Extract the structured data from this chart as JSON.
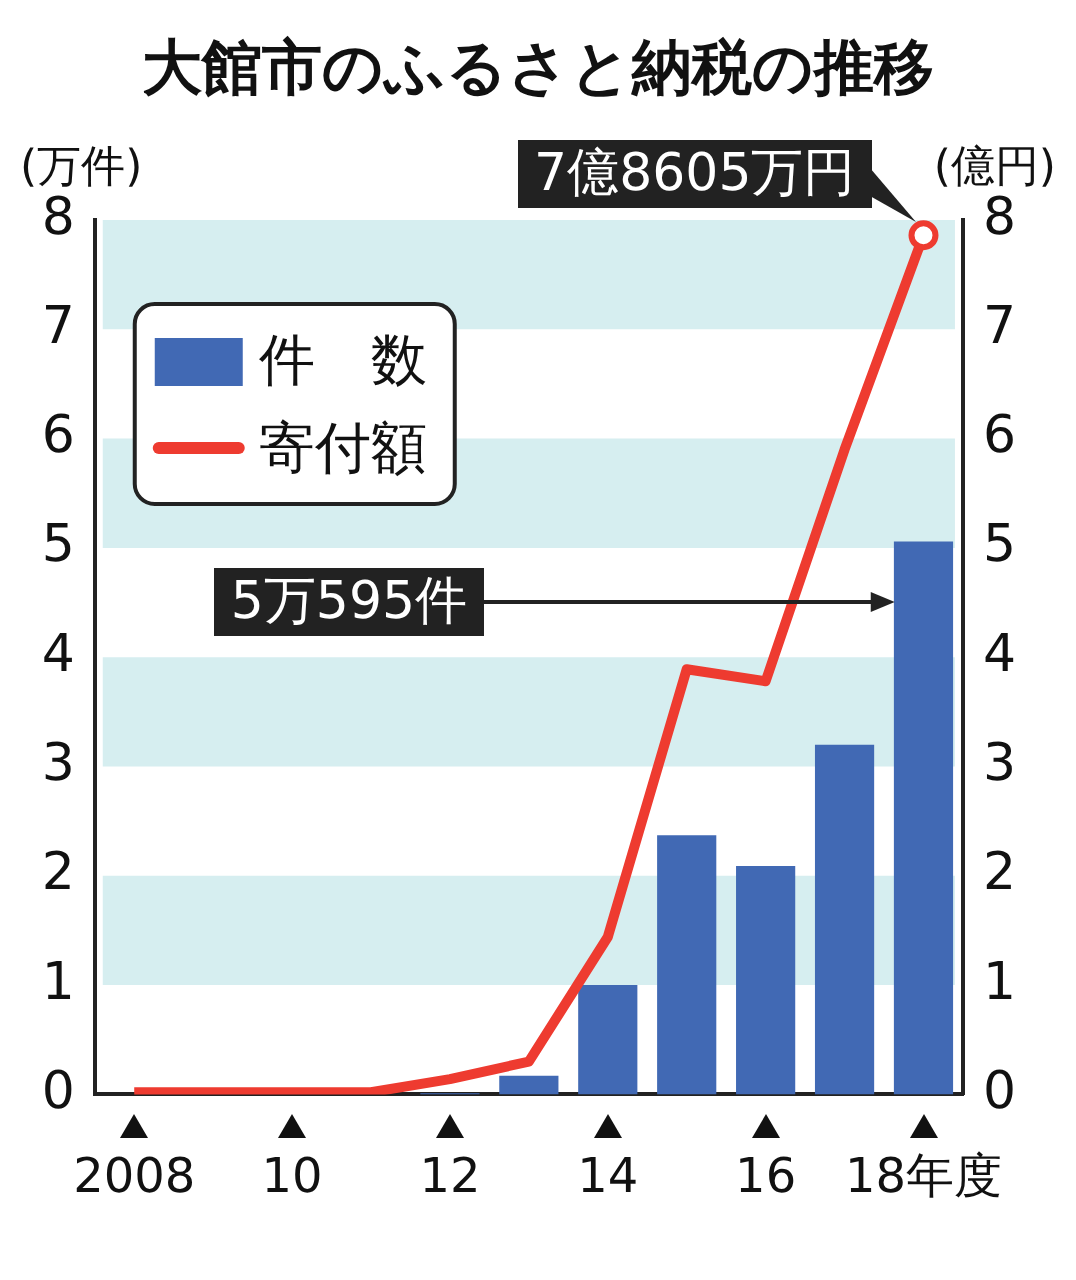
{
  "chart_data": {
    "type": "bar",
    "title": "大館市のふるさと納税の推移",
    "ylabel": "(万件)",
    "y2label": "(億円)",
    "categories": [
      "2008",
      null,
      "10",
      null,
      "12",
      null,
      "14",
      null,
      "16",
      null,
      "18年度"
    ],
    "series": [
      {
        "name": "件　数",
        "color": "#4169b4",
        "values": [
          null,
          0,
          0,
          0,
          0.01,
          0.17,
          1.0,
          2.37,
          2.09,
          3.2,
          5.0595
        ]
      },
      {
        "name": "寄付額",
        "type": "line",
        "axis": "y2",
        "color": "#ee3b30",
        "values": [
          0.02,
          0.02,
          0.02,
          0.02,
          0.14,
          0.3,
          1.44,
          3.89,
          3.78,
          5.9,
          7.8605
        ]
      }
    ],
    "ylim": [
      0,
      8
    ],
    "yticks": [
      0,
      1,
      2,
      3,
      4,
      5,
      6,
      7,
      8
    ],
    "y2lim": [
      0,
      8
    ],
    "y2ticks": [
      0,
      1,
      2,
      3,
      4,
      5,
      6,
      7,
      8
    ],
    "bands": [
      {
        "axis": "y",
        "from": 1,
        "to": 2,
        "color": "#d6eef0"
      },
      {
        "axis": "y",
        "from": 3,
        "to": 4,
        "color": "#d6eef0"
      },
      {
        "axis": "y",
        "from": 5,
        "to": 6,
        "color": "#d6eef0"
      },
      {
        "axis": "y",
        "from": 7,
        "to": 8,
        "color": "#d6eef0"
      }
    ],
    "annotations": [
      {
        "text": "7億8605万円",
        "x": "18年度",
        "y": 7.8605
      },
      "5万595件"
    ],
    "legend": "top left",
    "grid": false,
    "line_style": "solid",
    "marker": "none"
  }
}
